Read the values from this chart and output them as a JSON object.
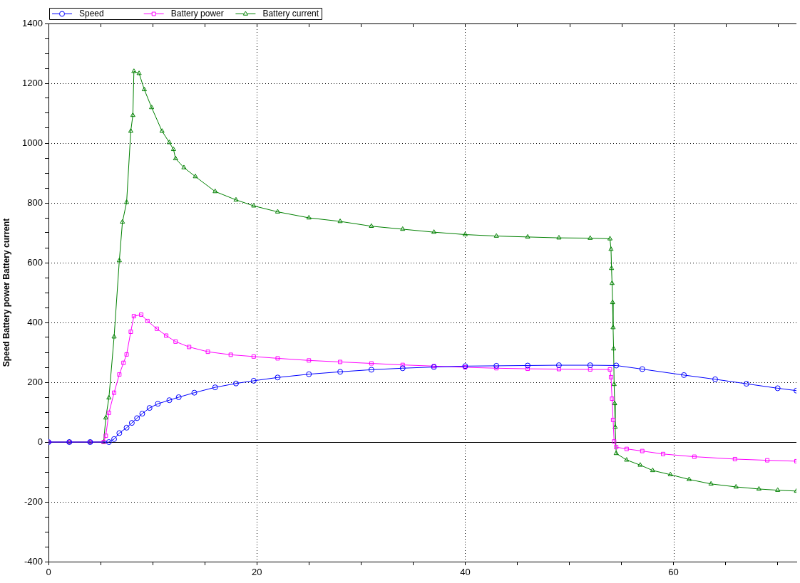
{
  "chart_data": {
    "type": "line",
    "ylabel": "Speed Battery power Battery current",
    "xlim": [
      0,
      71.8
    ],
    "xticks": [
      0,
      {
        "value": 5,
        "label": null
      },
      {
        "value": 10,
        "label": null
      },
      {
        "value": 15,
        "label": null
      },
      20,
      {
        "value": 25,
        "label": null
      },
      {
        "value": 30,
        "label": null
      },
      {
        "value": 35,
        "label": null
      },
      40,
      {
        "value": 45,
        "label": null
      },
      {
        "value": 50,
        "label": null
      },
      {
        "value": 55,
        "label": null
      },
      60,
      {
        "value": 65,
        "label": null
      },
      {
        "value": 70,
        "label": null
      }
    ],
    "ylim": [
      -400,
      1400
    ],
    "yticks": [
      -400,
      {
        "value": -350,
        "label": null
      },
      {
        "value": -300,
        "label": null
      },
      {
        "value": -250,
        "label": null
      },
      -200,
      {
        "value": -150,
        "label": null
      },
      {
        "value": -100,
        "label": null
      },
      {
        "value": -50,
        "label": null
      },
      0,
      {
        "value": 50,
        "label": null
      },
      {
        "value": 100,
        "label": null
      },
      {
        "value": 150,
        "label": null
      },
      200,
      {
        "value": 250,
        "label": null
      },
      {
        "value": 300,
        "label": null
      },
      {
        "value": 350,
        "label": null
      },
      400,
      {
        "value": 450,
        "label": null
      },
      {
        "value": 500,
        "label": null
      },
      {
        "value": 550,
        "label": null
      },
      600,
      {
        "value": 650,
        "label": null
      },
      {
        "value": 700,
        "label": null
      },
      {
        "value": 750,
        "label": null
      },
      800,
      {
        "value": 850,
        "label": null
      },
      {
        "value": 900,
        "label": null
      },
      {
        "value": 950,
        "label": null
      },
      1000,
      {
        "value": 1050,
        "label": null
      },
      {
        "value": 1100,
        "label": null
      },
      {
        "value": 1150,
        "label": null
      },
      1200,
      {
        "value": 1250,
        "label": null
      },
      {
        "value": 1300,
        "label": null
      },
      {
        "value": 1350,
        "label": null
      },
      1400
    ],
    "grid": true,
    "legend": "top left",
    "ref_lines": [
      {
        "axis": "y",
        "value": 0,
        "color": "#000000"
      }
    ],
    "series": [
      {
        "name": "Speed",
        "color": "#0000ff",
        "marker": "circle",
        "x": [
          0,
          2,
          4,
          5.8,
          6.3,
          6.8,
          7.5,
          8,
          8.5,
          9,
          9.7,
          10.5,
          11.6,
          12.5,
          14,
          16,
          18,
          19.7,
          22,
          25,
          28,
          31,
          34,
          37,
          40,
          43,
          46,
          49,
          52,
          54.5,
          57,
          61,
          64,
          67,
          70,
          71.8
        ],
        "values": [
          0,
          0,
          0,
          0,
          10,
          30,
          48,
          64,
          80,
          95,
          114,
          128,
          140,
          150,
          165,
          183,
          196,
          205,
          216,
          227,
          235,
          242,
          247,
          251,
          254,
          255,
          256,
          257,
          257,
          256,
          244,
          224,
          210,
          195,
          180,
          172
        ]
      },
      {
        "name": "Battery power",
        "color": "#ff00ff",
        "marker": "square",
        "x": [
          0,
          2,
          4,
          5.3,
          5.5,
          5.8,
          6.3,
          6.8,
          7.2,
          7.5,
          7.9,
          8.2,
          8.9,
          9.5,
          10.4,
          11.3,
          12.2,
          13.5,
          15.3,
          17.5,
          19.7,
          22,
          25,
          28,
          31,
          34,
          37,
          40,
          43,
          46,
          49,
          52,
          53.9,
          54,
          54.1,
          54.2,
          54.3,
          54.5,
          55.5,
          57,
          59,
          62,
          65.9,
          69,
          71.8
        ],
        "values": [
          0,
          0,
          0,
          0,
          21,
          98,
          165,
          226,
          265,
          293,
          369,
          421,
          426,
          405,
          379,
          356,
          336,
          318,
          302,
          292,
          286,
          280,
          273,
          268,
          263,
          258,
          254,
          250,
          247,
          245,
          244,
          243,
          243,
          217,
          145,
          74,
          2,
          -17,
          -23,
          -30,
          -40,
          -49,
          -57,
          -61,
          -64
        ]
      },
      {
        "name": "Battery current",
        "color": "#008000",
        "marker": "triangle",
        "x": [
          0,
          2,
          4,
          5.3,
          5.5,
          5.8,
          6.3,
          6.8,
          7.1,
          7.5,
          7.9,
          8.1,
          8.2,
          8.7,
          9.2,
          9.9,
          10.9,
          11.6,
          12,
          12.2,
          13,
          14.1,
          16,
          18,
          19.7,
          22,
          25,
          28,
          31,
          34,
          37,
          40,
          43,
          46,
          49,
          52,
          53.9,
          54,
          54.05,
          54.1,
          54.15,
          54.2,
          54.25,
          54.3,
          54.35,
          54.4,
          54.5,
          55.5,
          56.8,
          58,
          59.7,
          61.5,
          63.6,
          66,
          68.2,
          70,
          71.8
        ],
        "values": [
          0,
          0,
          0,
          0,
          81,
          148,
          352,
          607,
          736,
          802,
          1040,
          1093,
          1240,
          1233,
          1179,
          1119,
          1040,
          1002,
          979,
          948,
          918,
          888,
          838,
          810,
          790,
          770,
          750,
          738,
          722,
          712,
          702,
          694,
          689,
          686,
          683,
          682,
          680,
          645,
          581,
          531,
          467,
          383,
          312,
          193,
          129,
          50,
          -38,
          -60,
          -77,
          -95,
          -109,
          -125,
          -140,
          -150,
          -157,
          -161,
          -164
        ]
      }
    ]
  }
}
